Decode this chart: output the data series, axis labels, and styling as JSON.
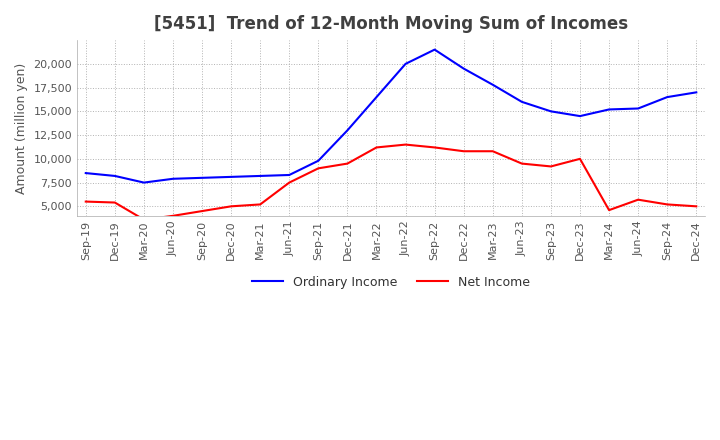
{
  "title": "[5451]  Trend of 12-Month Moving Sum of Incomes",
  "ylabel": "Amount (million yen)",
  "ylim": [
    4000,
    22500
  ],
  "yticks": [
    5000,
    7500,
    10000,
    12500,
    15000,
    17500,
    20000
  ],
  "x_labels": [
    "Sep-19",
    "Dec-19",
    "Mar-20",
    "Jun-20",
    "Sep-20",
    "Dec-20",
    "Mar-21",
    "Jun-21",
    "Sep-21",
    "Dec-21",
    "Mar-22",
    "Jun-22",
    "Sep-22",
    "Dec-22",
    "Mar-23",
    "Jun-23",
    "Sep-23",
    "Dec-23",
    "Mar-24",
    "Jun-24",
    "Sep-24",
    "Dec-24"
  ],
  "ordinary_income": [
    8500,
    8200,
    7500,
    7900,
    8000,
    8100,
    8200,
    8300,
    9800,
    13000,
    16500,
    20000,
    21500,
    19500,
    17800,
    16000,
    15000,
    14500,
    15200,
    15300,
    16500,
    17000
  ],
  "net_income": [
    5500,
    5400,
    3600,
    4000,
    4500,
    5000,
    5200,
    7500,
    9000,
    9500,
    11200,
    11500,
    11200,
    10800,
    10800,
    9500,
    9200,
    10000,
    4600,
    5700,
    5200,
    5000
  ],
  "ordinary_color": "#0000FF",
  "net_color": "#FF0000",
  "background_color": "#FFFFFF",
  "grid_color": "#AAAAAA",
  "title_color": "#404040",
  "title_fontsize": 12,
  "legend_fontsize": 9,
  "tick_fontsize": 8,
  "ylabel_fontsize": 9
}
